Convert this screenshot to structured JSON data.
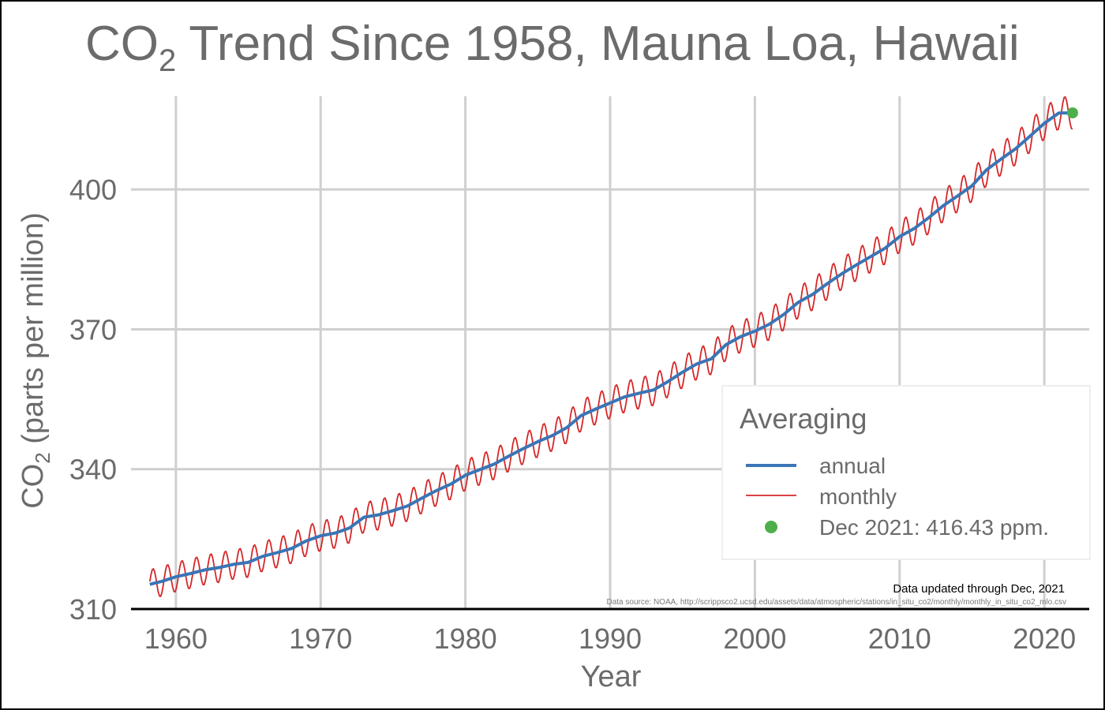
{
  "chart_data": {
    "type": "line",
    "title": {
      "prefix": "CO",
      "sub": "2",
      "suffix": " Trend Since 1958, Mauna Loa, Hawaii"
    },
    "xlabel": "Year",
    "ylabel": {
      "prefix": "CO",
      "sub": "2",
      "suffix": " (parts per million)"
    },
    "xlim": [
      1956.9,
      2023.1
    ],
    "ylim": [
      310,
      420
    ],
    "x_ticks": [
      1960,
      1970,
      1980,
      1990,
      2000,
      2010,
      2020
    ],
    "x_tick_labels": [
      "1960",
      "1970",
      "1980",
      "1990",
      "2000",
      "2010",
      "2020"
    ],
    "y_ticks": [
      310,
      340,
      370,
      400
    ],
    "y_tick_labels": [
      "310",
      "340",
      "370",
      "400"
    ],
    "grid": true,
    "legend": {
      "title": "Averaging",
      "placement": "bottom-right",
      "items": [
        {
          "label": "annual",
          "kind": "line",
          "color": "#3a75b5"
        },
        {
          "label": "monthly",
          "kind": "line",
          "color": "#d62728"
        },
        {
          "label": "Dec 2021: 416.43 ppm.",
          "kind": "point",
          "color": "#4daf4a"
        }
      ]
    },
    "annotations": {
      "updated": "Data updated through Dec, 2021",
      "source": "Data source: NOAA, http://scrippsco2.ucsd.edu/assets/data/atmospheric/stations/in_situ_co2/monthly/monthly_in_situ_co2_mlo.csv"
    },
    "series": [
      {
        "name": "annual",
        "color": "#3a75b5",
        "x": [
          1958.2,
          1959,
          1960,
          1961,
          1962,
          1963,
          1964,
          1965,
          1966,
          1967,
          1968,
          1969,
          1970,
          1971,
          1972,
          1973,
          1974,
          1975,
          1976,
          1977,
          1978,
          1979,
          1980,
          1981,
          1982,
          1983,
          1984,
          1985,
          1986,
          1987,
          1988,
          1989,
          1990,
          1991,
          1992,
          1993,
          1994,
          1995,
          1996,
          1997,
          1998,
          1999,
          2000,
          2001,
          2002,
          2003,
          2004,
          2005,
          2006,
          2007,
          2008,
          2009,
          2010,
          2011,
          2012,
          2013,
          2014,
          2015,
          2016,
          2017,
          2018,
          2019,
          2020,
          2021,
          2021.95
        ],
        "y": [
          315.3,
          315.9,
          316.9,
          317.6,
          318.4,
          318.9,
          319.6,
          320.0,
          321.3,
          322.1,
          323.0,
          324.6,
          325.7,
          326.3,
          327.4,
          329.7,
          330.2,
          331.1,
          332.1,
          333.8,
          335.4,
          336.8,
          338.7,
          339.9,
          341.1,
          342.8,
          344.4,
          345.9,
          347.2,
          348.9,
          351.5,
          352.9,
          354.2,
          355.5,
          356.3,
          357.0,
          358.8,
          360.8,
          362.6,
          363.7,
          366.7,
          368.4,
          369.6,
          371.1,
          373.2,
          375.8,
          377.5,
          379.8,
          381.9,
          383.8,
          385.6,
          387.4,
          389.9,
          391.6,
          393.9,
          396.5,
          398.6,
          400.8,
          404.2,
          406.5,
          408.7,
          411.4,
          414.2,
          416.4,
          416.43
        ]
      },
      {
        "name": "monthly",
        "color": "#d62728",
        "seasonal_amplitude_ppm": 3.2,
        "start": 1958.2,
        "end": 2021.95
      }
    ],
    "highlight_point": {
      "x": 2021.95,
      "y": 416.43,
      "color": "#4daf4a"
    }
  }
}
